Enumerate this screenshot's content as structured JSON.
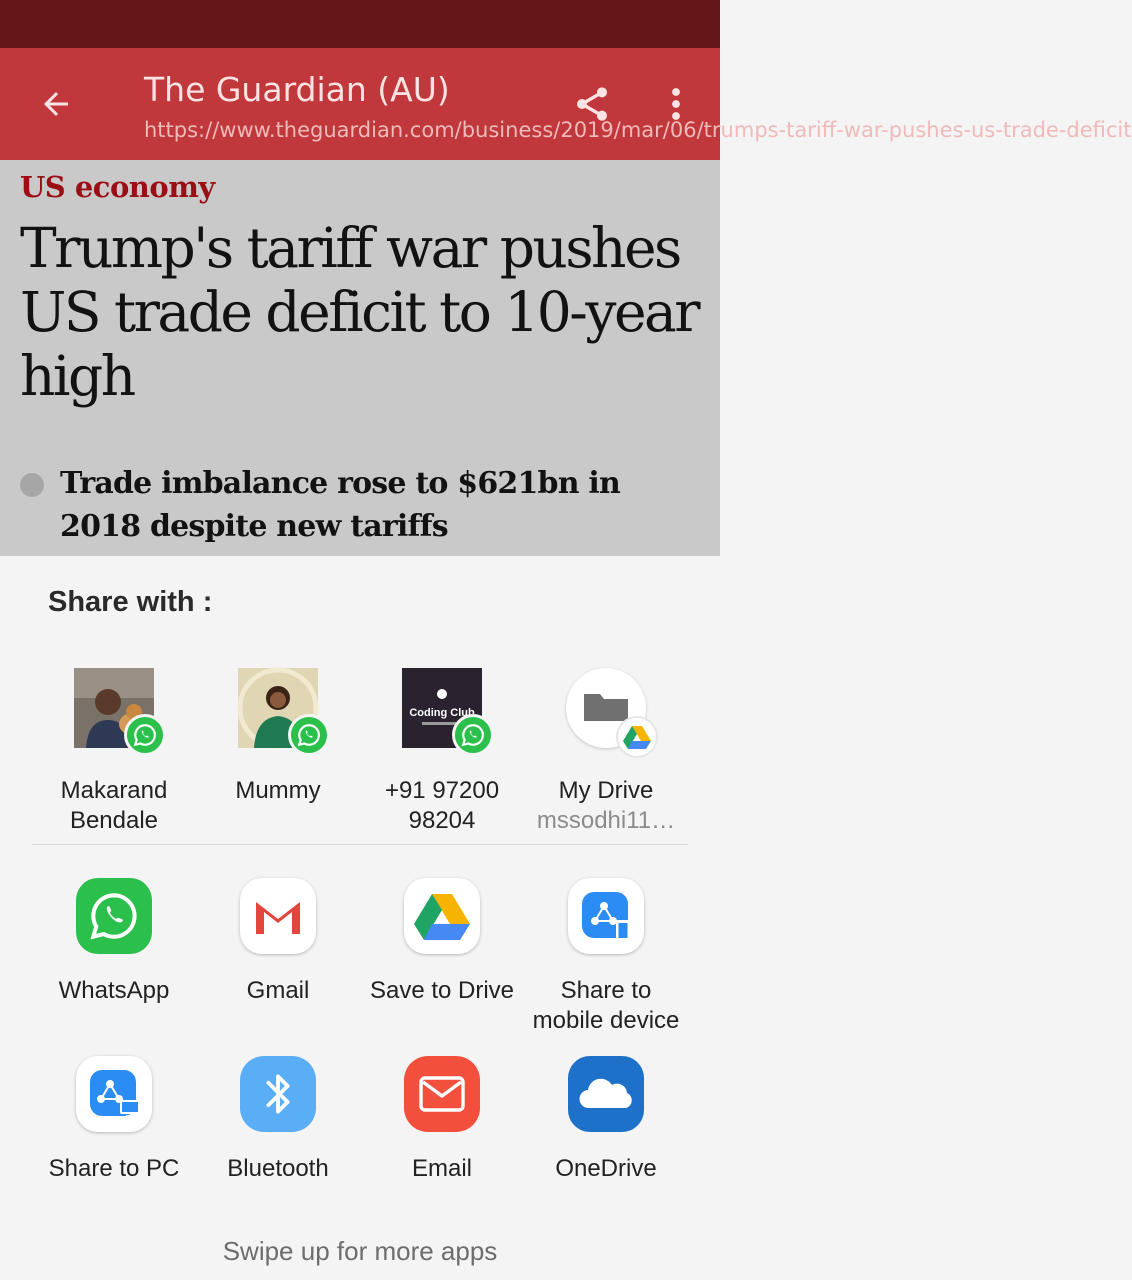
{
  "toolbar": {
    "title": "The Guardian (AU)",
    "url": "https://www.theguardian.com/business/2019/mar/06/trumps-tariff-war-pushes-us-trade-deficit"
  },
  "article": {
    "kicker": "US economy",
    "headline": "Trump's tariff war pushes US trade deficit to 10-year high",
    "bullet": "Trade imbalance rose to $621bn in 2018 despite new tariffs"
  },
  "share_sheet": {
    "title": "Share with :",
    "direct_targets": [
      {
        "name": "Makarand Bendale",
        "app_badge": "whatsapp-icon"
      },
      {
        "name": "Mummy",
        "app_badge": "whatsapp-icon"
      },
      {
        "name": "+91 97200 98204",
        "avatar_text": "Coding Club",
        "app_badge": "whatsapp-icon"
      },
      {
        "name": "My Drive",
        "account": "mssodhi11…",
        "app_badge": "google-drive-icon"
      }
    ],
    "apps": [
      {
        "label": "WhatsApp",
        "icon": "whatsapp-icon"
      },
      {
        "label": "Gmail",
        "icon": "gmail-icon"
      },
      {
        "label": "Save to Drive",
        "icon": "google-drive-icon"
      },
      {
        "label": "Share to mobile device",
        "icon": "share-to-mobile-icon"
      },
      {
        "label": "Share to PC",
        "icon": "share-to-pc-icon"
      },
      {
        "label": "Bluetooth",
        "icon": "bluetooth-icon"
      },
      {
        "label": "Email",
        "icon": "email-icon"
      },
      {
        "label": "OneDrive",
        "icon": "onedrive-icon"
      }
    ],
    "footer": "Swipe up for more apps"
  },
  "colors": {
    "status_bar": "#641619",
    "toolbar": "#c0383b",
    "kicker": "#9a0f16",
    "whatsapp": "#2bc04b",
    "bluetooth": "#5aaef5",
    "email": "#f2503c",
    "onedrive": "#1e71c9",
    "share_it": "#2b8cf3"
  }
}
